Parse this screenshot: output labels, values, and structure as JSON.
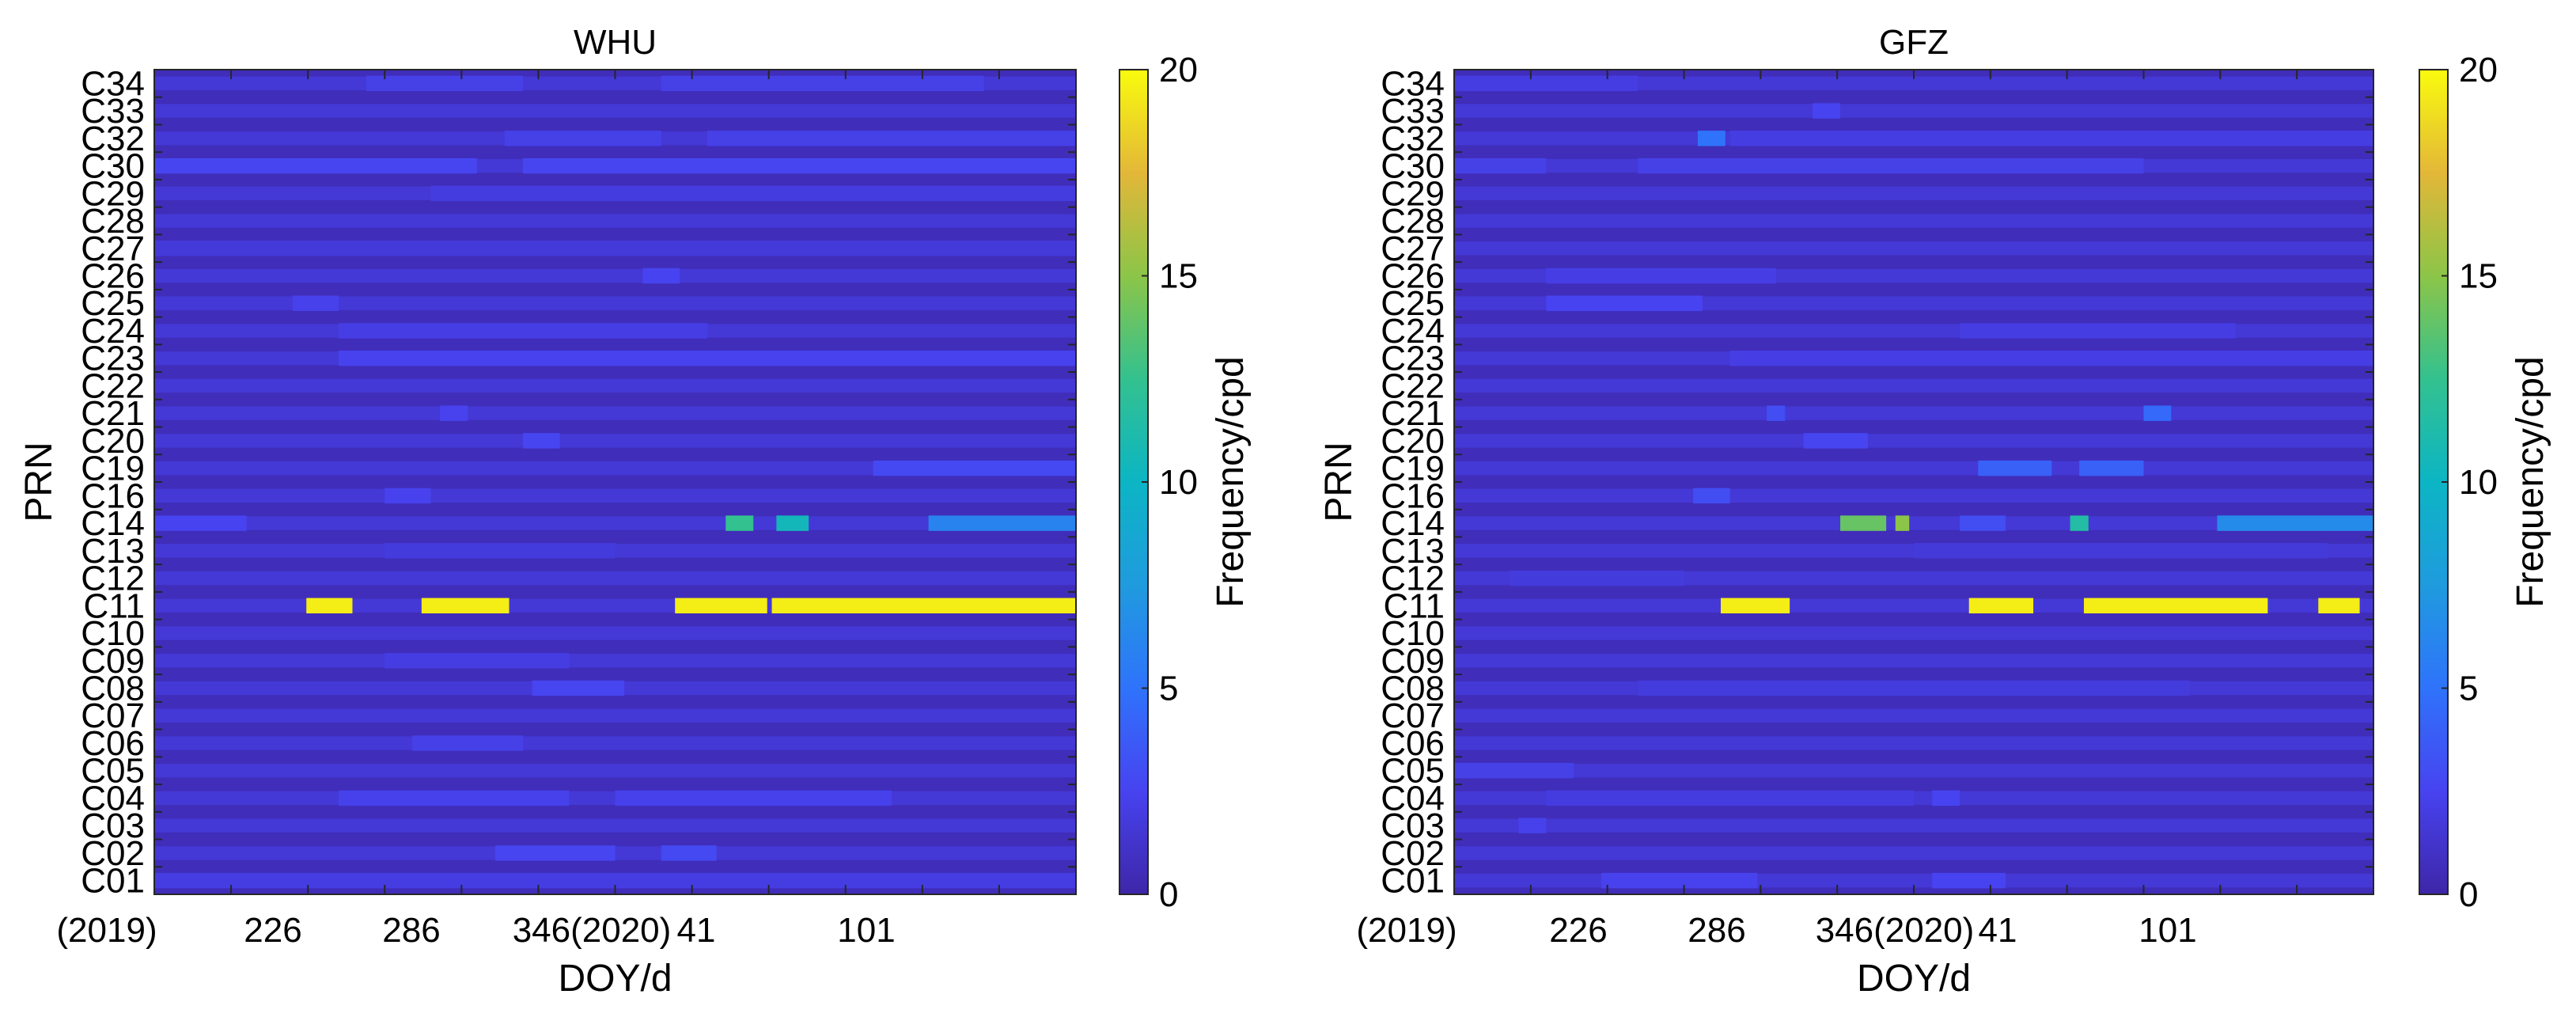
{
  "chart_data": [
    {
      "type": "heatmap",
      "title": "WHU",
      "xlabel": "DOY/d",
      "ylabel": "PRN",
      "x_ticks": [
        "(2019)",
        "226",
        "286",
        "346(2020)",
        "41",
        "101"
      ],
      "rows": [
        "C01",
        "C02",
        "C03",
        "C04",
        "C05",
        "C06",
        "C07",
        "C08",
        "C09",
        "C10",
        "C11",
        "C12",
        "C13",
        "C14",
        "C16",
        "C19",
        "C20",
        "C21",
        "C22",
        "C23",
        "C24",
        "C25",
        "C26",
        "C27",
        "C28",
        "C29",
        "C30",
        "C32",
        "C33",
        "C34"
      ],
      "colorbar_label": "Frequency/cpd",
      "colorbar_ticks": [
        "0",
        "5",
        "10",
        "15",
        "20"
      ],
      "clim": [
        0,
        20
      ],
      "x_range": [
        0,
        1
      ],
      "base_value": 1.0,
      "segments": [
        {
          "row": "C11",
          "start": 0.165,
          "end": 0.215,
          "value": 19.5
        },
        {
          "row": "C11",
          "start": 0.29,
          "end": 0.385,
          "value": 19.5
        },
        {
          "row": "C11",
          "start": 0.565,
          "end": 0.665,
          "value": 19.5
        },
        {
          "row": "C11",
          "start": 0.67,
          "end": 1.0,
          "value": 19.5
        },
        {
          "row": "C14",
          "start": 0.62,
          "end": 0.65,
          "value": 12.5
        },
        {
          "row": "C14",
          "start": 0.675,
          "end": 0.71,
          "value": 10.5
        },
        {
          "row": "C14",
          "start": 0.84,
          "end": 1.0,
          "value": 6.0
        },
        {
          "row": "C14",
          "start": 0.0,
          "end": 0.1,
          "value": 2.5
        },
        {
          "row": "C34",
          "start": 0.23,
          "end": 0.4,
          "value": 2.2
        },
        {
          "row": "C34",
          "start": 0.55,
          "end": 0.9,
          "value": 2.2
        },
        {
          "row": "C30",
          "start": 0.0,
          "end": 0.35,
          "value": 2.6
        },
        {
          "row": "C30",
          "start": 0.4,
          "end": 1.0,
          "value": 2.6
        },
        {
          "row": "C32",
          "start": 0.38,
          "end": 0.55,
          "value": 2.2
        },
        {
          "row": "C32",
          "start": 0.6,
          "end": 1.0,
          "value": 2.2
        },
        {
          "row": "C23",
          "start": 0.2,
          "end": 1.0,
          "value": 2.4
        },
        {
          "row": "C24",
          "start": 0.2,
          "end": 0.6,
          "value": 2.1
        },
        {
          "row": "C25",
          "start": 0.15,
          "end": 0.2,
          "value": 2.3
        },
        {
          "row": "C26",
          "start": 0.53,
          "end": 0.57,
          "value": 2.5
        },
        {
          "row": "C19",
          "start": 0.78,
          "end": 1.0,
          "value": 2.8
        },
        {
          "row": "C20",
          "start": 0.4,
          "end": 0.44,
          "value": 2.6
        },
        {
          "row": "C21",
          "start": 0.31,
          "end": 0.34,
          "value": 2.4
        },
        {
          "row": "C08",
          "start": 0.41,
          "end": 0.51,
          "value": 2.6
        },
        {
          "row": "C06",
          "start": 0.28,
          "end": 0.4,
          "value": 2.2
        },
        {
          "row": "C04",
          "start": 0.2,
          "end": 0.45,
          "value": 2.3
        },
        {
          "row": "C04",
          "start": 0.5,
          "end": 0.8,
          "value": 2.3
        },
        {
          "row": "C02",
          "start": 0.37,
          "end": 0.5,
          "value": 2.6
        },
        {
          "row": "C02",
          "start": 0.55,
          "end": 0.61,
          "value": 2.8
        },
        {
          "row": "C01",
          "start": 0.0,
          "end": 1.0,
          "value": 2.0
        },
        {
          "row": "C09",
          "start": 0.25,
          "end": 0.45,
          "value": 2.0
        },
        {
          "row": "C16",
          "start": 0.25,
          "end": 0.3,
          "value": 2.4
        },
        {
          "row": "C13",
          "start": 0.25,
          "end": 0.5,
          "value": 1.8
        },
        {
          "row": "C29",
          "start": 0.3,
          "end": 1.0,
          "value": 1.9
        },
        {
          "row": "C27",
          "start": 0.0,
          "end": 1.0,
          "value": 1.7
        }
      ]
    },
    {
      "type": "heatmap",
      "title": "GFZ",
      "xlabel": "DOY/d",
      "ylabel": "PRN",
      "x_ticks": [
        "(2019)",
        "226",
        "286",
        "346(2020)",
        "41",
        "101"
      ],
      "rows": [
        "C01",
        "C02",
        "C03",
        "C04",
        "C05",
        "C06",
        "C07",
        "C08",
        "C09",
        "C10",
        "C11",
        "C12",
        "C13",
        "C14",
        "C16",
        "C19",
        "C20",
        "C21",
        "C22",
        "C23",
        "C24",
        "C25",
        "C26",
        "C27",
        "C28",
        "C29",
        "C30",
        "C32",
        "C33",
        "C34"
      ],
      "colorbar_label": "Frequency/cpd",
      "colorbar_ticks": [
        "0",
        "5",
        "10",
        "15",
        "20"
      ],
      "clim": [
        0,
        20
      ],
      "x_range": [
        0,
        1
      ],
      "base_value": 1.0,
      "segments": [
        {
          "row": "C11",
          "start": 0.29,
          "end": 0.365,
          "value": 19.5
        },
        {
          "row": "C11",
          "start": 0.56,
          "end": 0.63,
          "value": 19.5
        },
        {
          "row": "C11",
          "start": 0.685,
          "end": 0.885,
          "value": 19.5
        },
        {
          "row": "C11",
          "start": 0.94,
          "end": 0.985,
          "value": 19.5
        },
        {
          "row": "C14",
          "start": 0.42,
          "end": 0.47,
          "value": 14.0
        },
        {
          "row": "C14",
          "start": 0.48,
          "end": 0.495,
          "value": 15.0
        },
        {
          "row": "C14",
          "start": 0.67,
          "end": 0.69,
          "value": 11.5
        },
        {
          "row": "C14",
          "start": 0.83,
          "end": 1.0,
          "value": 6.5
        },
        {
          "row": "C14",
          "start": 0.55,
          "end": 0.6,
          "value": 3.0
        },
        {
          "row": "C19",
          "start": 0.57,
          "end": 0.65,
          "value": 4.0
        },
        {
          "row": "C19",
          "start": 0.68,
          "end": 0.75,
          "value": 4.0
        },
        {
          "row": "C32",
          "start": 0.265,
          "end": 0.295,
          "value": 5.0
        },
        {
          "row": "C32",
          "start": 0.3,
          "end": 1.0,
          "value": 2.0
        },
        {
          "row": "C21",
          "start": 0.75,
          "end": 0.78,
          "value": 4.5
        },
        {
          "row": "C21",
          "start": 0.34,
          "end": 0.36,
          "value": 3.0
        },
        {
          "row": "C16",
          "start": 0.26,
          "end": 0.3,
          "value": 3.0
        },
        {
          "row": "C30",
          "start": 0.0,
          "end": 0.1,
          "value": 2.2
        },
        {
          "row": "C30",
          "start": 0.2,
          "end": 0.75,
          "value": 2.2
        },
        {
          "row": "C25",
          "start": 0.1,
          "end": 0.27,
          "value": 2.5
        },
        {
          "row": "C26",
          "start": 0.1,
          "end": 0.35,
          "value": 2.1
        },
        {
          "row": "C20",
          "start": 0.38,
          "end": 0.45,
          "value": 2.6
        },
        {
          "row": "C34",
          "start": 0.0,
          "end": 0.2,
          "value": 2.0
        },
        {
          "row": "C33",
          "start": 0.39,
          "end": 0.42,
          "value": 2.5
        },
        {
          "row": "C23",
          "start": 0.3,
          "end": 1.0,
          "value": 2.1
        },
        {
          "row": "C24",
          "start": 0.55,
          "end": 0.85,
          "value": 2.0
        },
        {
          "row": "C04",
          "start": 0.52,
          "end": 0.55,
          "value": 2.5
        },
        {
          "row": "C04",
          "start": 0.1,
          "end": 0.5,
          "value": 1.9
        },
        {
          "row": "C05",
          "start": 0.0,
          "end": 0.13,
          "value": 2.2
        },
        {
          "row": "C01",
          "start": 0.16,
          "end": 0.33,
          "value": 2.4
        },
        {
          "row": "C01",
          "start": 0.52,
          "end": 0.6,
          "value": 2.5
        },
        {
          "row": "C03",
          "start": 0.07,
          "end": 0.1,
          "value": 2.3
        },
        {
          "row": "C08",
          "start": 0.2,
          "end": 0.8,
          "value": 1.8
        },
        {
          "row": "C12",
          "start": 0.06,
          "end": 0.25,
          "value": 1.8
        },
        {
          "row": "C13",
          "start": 0.5,
          "end": 0.95,
          "value": 1.7
        }
      ]
    }
  ]
}
